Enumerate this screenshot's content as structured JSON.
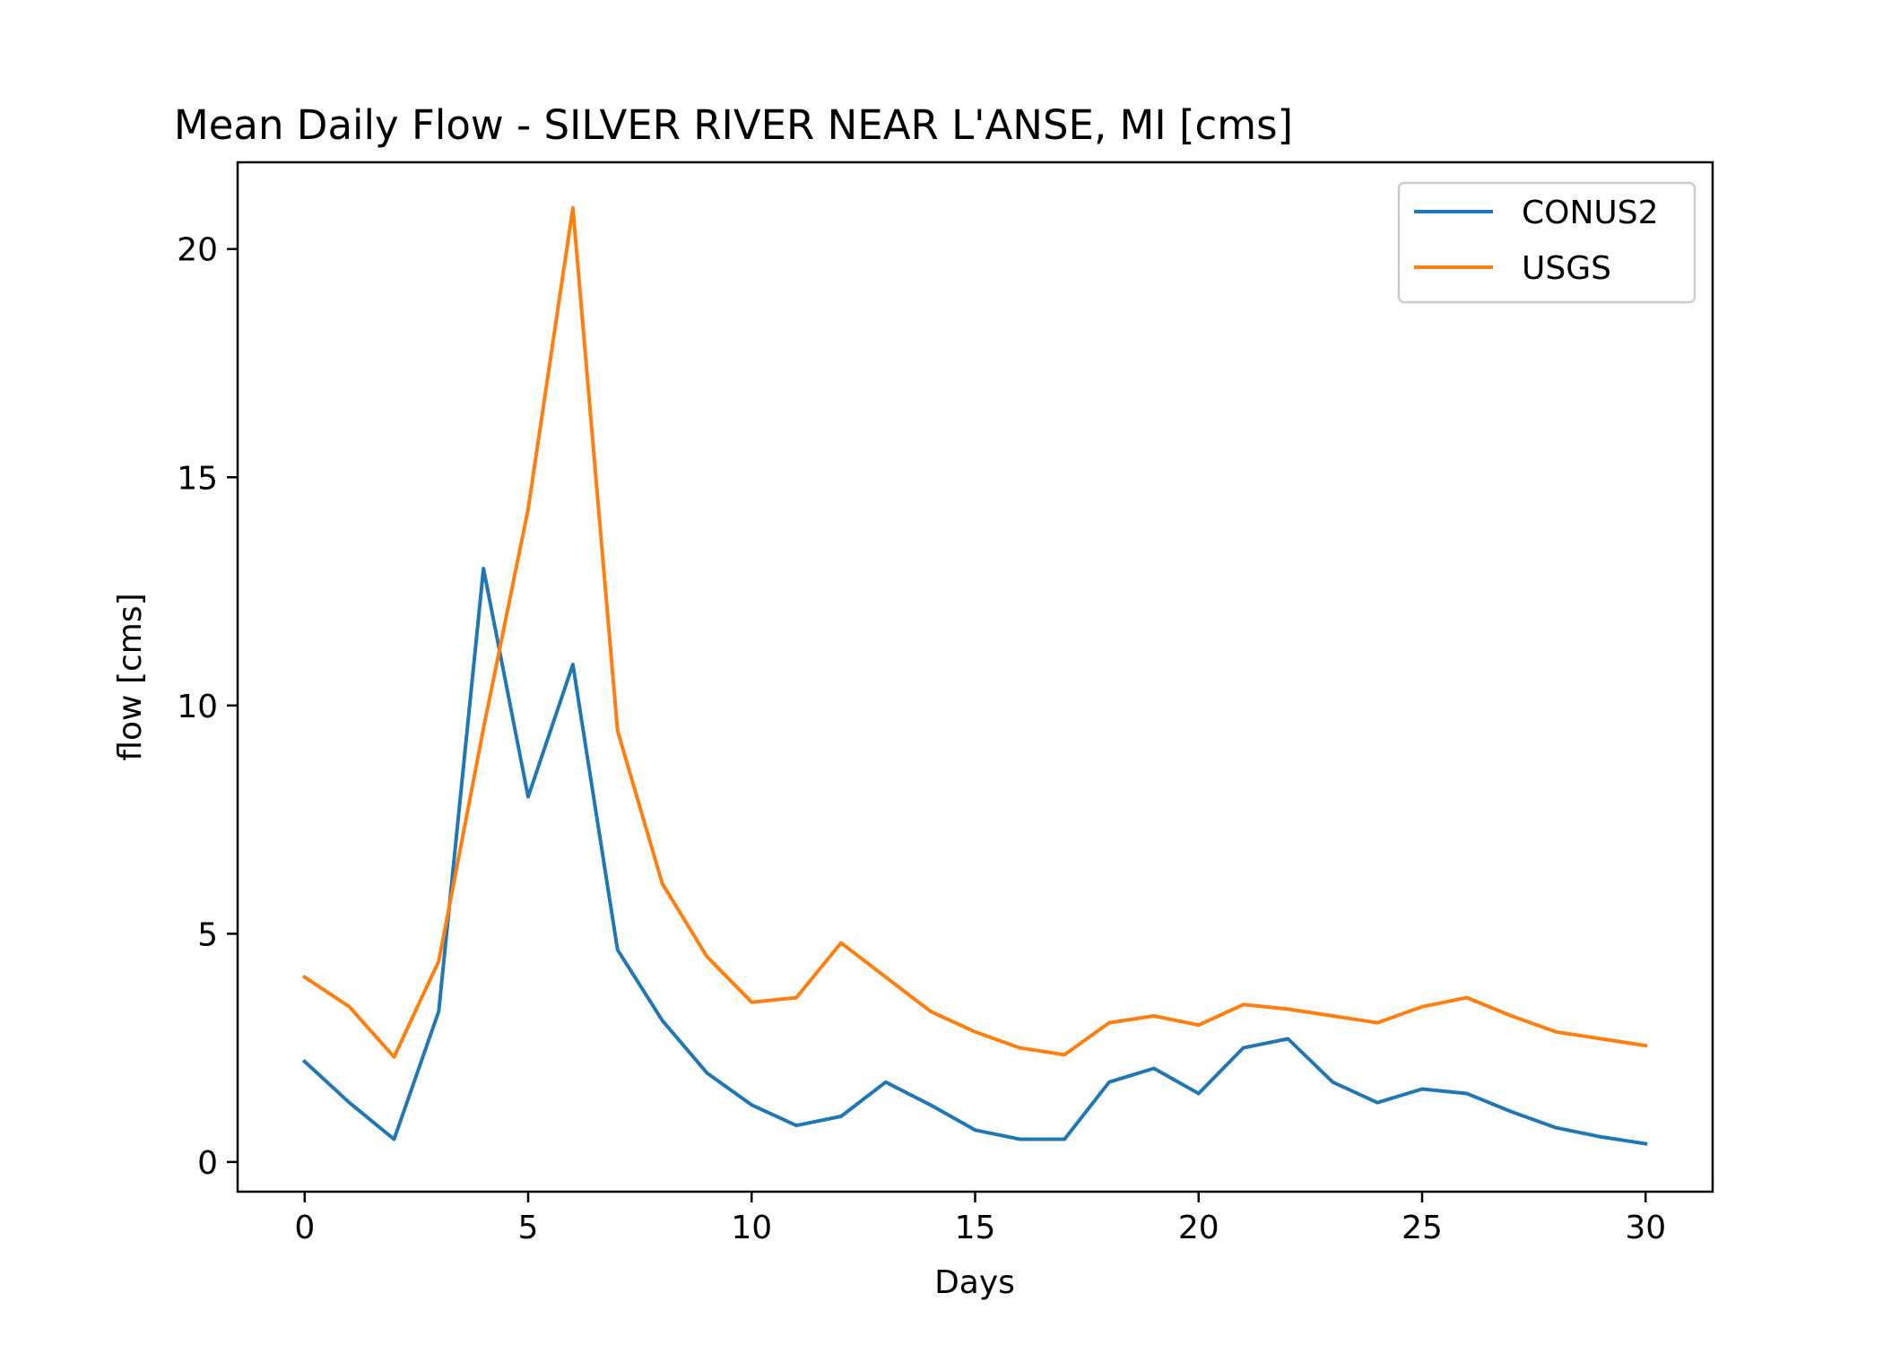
{
  "chart_data": {
    "type": "line",
    "title": "Mean Daily Flow - SILVER RIVER NEAR L'ANSE, MI [cms]",
    "xlabel": "Days",
    "ylabel": "flow [cms]",
    "xlim": [
      -1.5,
      31.5
    ],
    "ylim": [
      -0.65,
      21.9
    ],
    "x_ticks": [
      0,
      5,
      10,
      15,
      20,
      25,
      30
    ],
    "x_tick_labels": [
      "0",
      "5",
      "10",
      "15",
      "20",
      "25",
      "30"
    ],
    "y_ticks": [
      0,
      5,
      10,
      15,
      20
    ],
    "y_tick_labels": [
      "0",
      "5",
      "10",
      "15",
      "20"
    ],
    "grid": false,
    "legend_position": "top-right",
    "x": [
      0,
      1,
      2,
      3,
      4,
      5,
      6,
      7,
      8,
      9,
      10,
      11,
      12,
      13,
      14,
      15,
      16,
      17,
      18,
      19,
      20,
      21,
      22,
      23,
      24,
      25,
      26,
      27,
      28,
      29,
      30
    ],
    "series": [
      {
        "name": "CONUS2",
        "color": "#1f77b4",
        "values": [
          2.2,
          1.3,
          0.5,
          3.3,
          13.0,
          8.0,
          10.9,
          4.65,
          3.1,
          1.95,
          1.25,
          0.8,
          1.0,
          1.75,
          1.25,
          0.7,
          0.5,
          0.5,
          1.75,
          2.05,
          1.5,
          2.5,
          2.7,
          1.75,
          1.3,
          1.6,
          1.5,
          1.1,
          0.75,
          0.55,
          0.4
        ]
      },
      {
        "name": "USGS",
        "color": "#ff7f0e",
        "values": [
          4.05,
          3.4,
          2.3,
          4.4,
          9.5,
          14.3,
          20.9,
          9.45,
          6.1,
          4.5,
          3.5,
          3.6,
          4.8,
          4.05,
          3.3,
          2.85,
          2.5,
          2.35,
          3.05,
          3.2,
          3.0,
          3.45,
          3.35,
          3.2,
          3.05,
          3.4,
          3.6,
          3.2,
          2.85,
          2.7,
          2.55
        ]
      }
    ]
  }
}
